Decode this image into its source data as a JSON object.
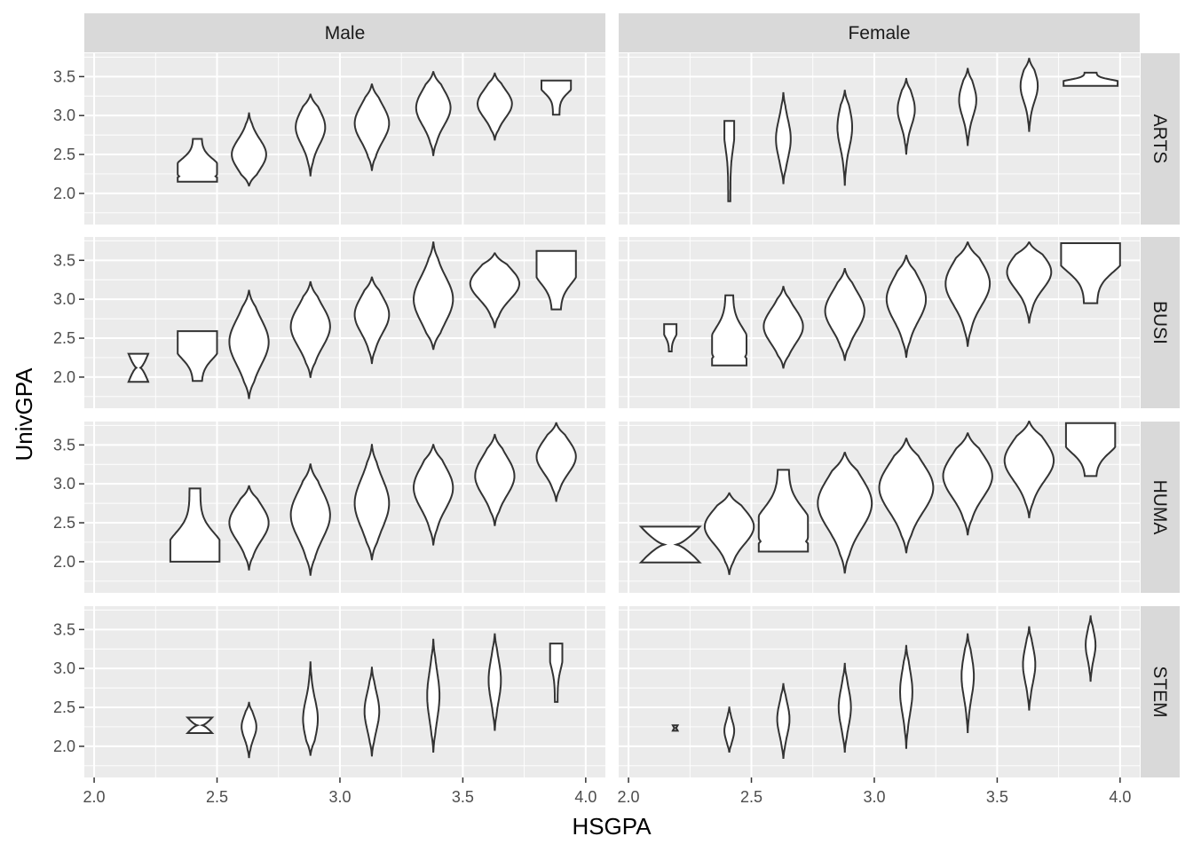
{
  "chart_data": {
    "type": "violin",
    "xlabel": "HSGPA",
    "ylabel": "UnivGPA",
    "xlim": [
      1.96,
      4.08
    ],
    "ylim": [
      1.6,
      3.8
    ],
    "x_ticks": [
      "2.0",
      "2.5",
      "3.0",
      "3.5",
      "4.0"
    ],
    "y_ticks": [
      "2.0",
      "2.5",
      "3.0",
      "3.5"
    ],
    "columns": [
      "Male",
      "Female"
    ],
    "rows": [
      "ARTS",
      "BUSI",
      "HUMA",
      "STEM"
    ],
    "grid": true,
    "violin_fill": "#FFFFFF",
    "panel_background": "#EBEBEB",
    "strip_background": "#D9D9D9",
    "panels": [
      {
        "column": "Male",
        "row": "ARTS",
        "violins": [
          {
            "x": 2.42,
            "ymin": 2.15,
            "ymax": 2.7,
            "peak": 2.38,
            "hw": 0.08,
            "shape": "bottom-heavy"
          },
          {
            "x": 2.63,
            "ymin": 2.1,
            "ymax": 3.03,
            "peak": 2.5,
            "hw": 0.07,
            "shape": "normal"
          },
          {
            "x": 2.88,
            "ymin": 2.23,
            "ymax": 3.27,
            "peak": 2.85,
            "hw": 0.06,
            "shape": "normal"
          },
          {
            "x": 3.13,
            "ymin": 2.3,
            "ymax": 3.4,
            "peak": 2.9,
            "hw": 0.07,
            "shape": "normal"
          },
          {
            "x": 3.38,
            "ymin": 2.49,
            "ymax": 3.56,
            "peak": 3.1,
            "hw": 0.07,
            "shape": "normal"
          },
          {
            "x": 3.63,
            "ymin": 2.69,
            "ymax": 3.54,
            "peak": 3.15,
            "hw": 0.07,
            "shape": "normal"
          },
          {
            "x": 3.88,
            "ymin": 3.01,
            "ymax": 3.45,
            "peak": 3.4,
            "hw": 0.06,
            "shape": "top-heavy"
          }
        ]
      },
      {
        "column": "Female",
        "row": "ARTS",
        "violins": [
          {
            "x": 2.41,
            "ymin": 1.9,
            "ymax": 2.93,
            "peak": 2.85,
            "hw": 0.02,
            "shape": "top-heavy"
          },
          {
            "x": 2.63,
            "ymin": 2.13,
            "ymax": 3.3,
            "peak": 2.7,
            "hw": 0.03,
            "shape": "normal"
          },
          {
            "x": 2.88,
            "ymin": 2.11,
            "ymax": 3.32,
            "peak": 2.85,
            "hw": 0.03,
            "shape": "normal"
          },
          {
            "x": 3.13,
            "ymin": 2.51,
            "ymax": 3.47,
            "peak": 3.08,
            "hw": 0.035,
            "shape": "normal"
          },
          {
            "x": 3.38,
            "ymin": 2.61,
            "ymax": 3.6,
            "peak": 3.2,
            "hw": 0.035,
            "shape": "normal"
          },
          {
            "x": 3.63,
            "ymin": 2.79,
            "ymax": 3.73,
            "peak": 3.38,
            "hw": 0.035,
            "shape": "normal"
          },
          {
            "x": 3.88,
            "ymin": 3.38,
            "ymax": 3.55,
            "peak": 3.42,
            "hw": 0.11,
            "shape": "bottom-heavy"
          }
        ]
      },
      {
        "column": "Male",
        "row": "BUSI",
        "violins": [
          {
            "x": 2.18,
            "ymin": 1.94,
            "ymax": 2.3,
            "peak": 2.12,
            "hw": 0.04,
            "shape": "hourglass"
          },
          {
            "x": 2.42,
            "ymin": 1.95,
            "ymax": 2.59,
            "peak": 2.3,
            "hw": 0.08,
            "shape": "top-heavy"
          },
          {
            "x": 2.63,
            "ymin": 1.73,
            "ymax": 3.11,
            "peak": 2.45,
            "hw": 0.08,
            "shape": "normal"
          },
          {
            "x": 2.88,
            "ymin": 2.0,
            "ymax": 3.22,
            "peak": 2.65,
            "hw": 0.08,
            "shape": "normal"
          },
          {
            "x": 3.13,
            "ymin": 2.18,
            "ymax": 3.28,
            "peak": 2.8,
            "hw": 0.07,
            "shape": "normal"
          },
          {
            "x": 3.38,
            "ymin": 2.36,
            "ymax": 3.73,
            "peak": 3.0,
            "hw": 0.08,
            "shape": "normal"
          },
          {
            "x": 3.63,
            "ymin": 2.64,
            "ymax": 3.59,
            "peak": 3.2,
            "hw": 0.1,
            "shape": "normal"
          },
          {
            "x": 3.88,
            "ymin": 2.87,
            "ymax": 3.62,
            "peak": 3.3,
            "hw": 0.08,
            "shape": "top-heavy"
          }
        ]
      },
      {
        "column": "Female",
        "row": "BUSI",
        "violins": [
          {
            "x": 2.17,
            "ymin": 2.33,
            "ymax": 2.68,
            "peak": 2.6,
            "hw": 0.025,
            "shape": "top-heavy"
          },
          {
            "x": 2.41,
            "ymin": 2.15,
            "ymax": 3.05,
            "peak": 2.5,
            "hw": 0.07,
            "shape": "bottom-heavy"
          },
          {
            "x": 2.63,
            "ymin": 2.12,
            "ymax": 3.16,
            "peak": 2.65,
            "hw": 0.08,
            "shape": "normal"
          },
          {
            "x": 2.88,
            "ymin": 2.22,
            "ymax": 3.39,
            "peak": 2.85,
            "hw": 0.08,
            "shape": "normal"
          },
          {
            "x": 3.13,
            "ymin": 2.26,
            "ymax": 3.56,
            "peak": 3.0,
            "hw": 0.08,
            "shape": "normal"
          },
          {
            "x": 3.38,
            "ymin": 2.4,
            "ymax": 3.73,
            "peak": 3.2,
            "hw": 0.09,
            "shape": "normal"
          },
          {
            "x": 3.63,
            "ymin": 2.7,
            "ymax": 3.73,
            "peak": 3.35,
            "hw": 0.09,
            "shape": "normal"
          },
          {
            "x": 3.88,
            "ymin": 2.95,
            "ymax": 3.72,
            "peak": 3.55,
            "hw": 0.12,
            "shape": "top-heavy"
          }
        ]
      },
      {
        "column": "Male",
        "row": "HUMA",
        "violins": [
          {
            "x": 2.41,
            "ymin": 2.0,
            "ymax": 2.94,
            "peak": 2.15,
            "hw": 0.1,
            "shape": "bottom-heavy"
          },
          {
            "x": 2.63,
            "ymin": 1.9,
            "ymax": 2.97,
            "peak": 2.5,
            "hw": 0.08,
            "shape": "normal"
          },
          {
            "x": 2.88,
            "ymin": 1.83,
            "ymax": 3.25,
            "peak": 2.6,
            "hw": 0.08,
            "shape": "normal"
          },
          {
            "x": 3.13,
            "ymin": 2.03,
            "ymax": 3.5,
            "peak": 2.75,
            "hw": 0.07,
            "shape": "normal"
          },
          {
            "x": 3.38,
            "ymin": 2.22,
            "ymax": 3.5,
            "peak": 2.95,
            "hw": 0.08,
            "shape": "normal"
          },
          {
            "x": 3.63,
            "ymin": 2.47,
            "ymax": 3.63,
            "peak": 3.1,
            "hw": 0.08,
            "shape": "normal"
          },
          {
            "x": 3.88,
            "ymin": 2.78,
            "ymax": 3.78,
            "peak": 3.35,
            "hw": 0.08,
            "shape": "normal"
          }
        ]
      },
      {
        "column": "Female",
        "row": "HUMA",
        "violins": [
          {
            "x": 2.17,
            "ymin": 1.99,
            "ymax": 2.45,
            "peak": 2.3,
            "hw": 0.12,
            "shape": "hourglass"
          },
          {
            "x": 2.41,
            "ymin": 1.84,
            "ymax": 2.88,
            "peak": 2.45,
            "hw": 0.1,
            "shape": "normal"
          },
          {
            "x": 2.63,
            "ymin": 2.13,
            "ymax": 3.18,
            "peak": 2.55,
            "hw": 0.1,
            "shape": "bottom-heavy"
          },
          {
            "x": 2.88,
            "ymin": 1.86,
            "ymax": 3.4,
            "peak": 2.75,
            "hw": 0.11,
            "shape": "normal"
          },
          {
            "x": 3.13,
            "ymin": 2.12,
            "ymax": 3.58,
            "peak": 2.95,
            "hw": 0.11,
            "shape": "normal"
          },
          {
            "x": 3.38,
            "ymin": 2.35,
            "ymax": 3.65,
            "peak": 3.1,
            "hw": 0.1,
            "shape": "normal"
          },
          {
            "x": 3.63,
            "ymin": 2.57,
            "ymax": 3.8,
            "peak": 3.3,
            "hw": 0.1,
            "shape": "normal"
          },
          {
            "x": 3.88,
            "ymin": 3.1,
            "ymax": 3.78,
            "peak": 3.55,
            "hw": 0.1,
            "shape": "top-heavy"
          }
        ]
      },
      {
        "column": "Male",
        "row": "STEM",
        "violins": [
          {
            "x": 2.43,
            "ymin": 2.17,
            "ymax": 2.37,
            "peak": 2.2,
            "hw": 0.05,
            "shape": "hourglass"
          },
          {
            "x": 2.63,
            "ymin": 1.85,
            "ymax": 2.56,
            "peak": 2.25,
            "hw": 0.03,
            "shape": "normal"
          },
          {
            "x": 2.88,
            "ymin": 1.89,
            "ymax": 3.08,
            "peak": 2.35,
            "hw": 0.03,
            "shape": "normal"
          },
          {
            "x": 3.13,
            "ymin": 1.88,
            "ymax": 3.01,
            "peak": 2.45,
            "hw": 0.03,
            "shape": "normal"
          },
          {
            "x": 3.38,
            "ymin": 1.93,
            "ymax": 3.37,
            "peak": 2.65,
            "hw": 0.025,
            "shape": "normal"
          },
          {
            "x": 3.63,
            "ymin": 2.2,
            "ymax": 3.45,
            "peak": 2.85,
            "hw": 0.025,
            "shape": "normal"
          },
          {
            "x": 3.88,
            "ymin": 2.57,
            "ymax": 3.32,
            "peak": 3.2,
            "hw": 0.025,
            "shape": "top-heavy"
          }
        ]
      },
      {
        "column": "Female",
        "row": "STEM",
        "violins": [
          {
            "x": 2.19,
            "ymin": 2.2,
            "ymax": 2.27,
            "peak": 2.23,
            "hw": 0.01,
            "shape": "hourglass"
          },
          {
            "x": 2.41,
            "ymin": 1.92,
            "ymax": 2.51,
            "peak": 2.2,
            "hw": 0.02,
            "shape": "normal"
          },
          {
            "x": 2.63,
            "ymin": 1.84,
            "ymax": 2.81,
            "peak": 2.35,
            "hw": 0.025,
            "shape": "normal"
          },
          {
            "x": 2.88,
            "ymin": 1.93,
            "ymax": 3.06,
            "peak": 2.5,
            "hw": 0.025,
            "shape": "normal"
          },
          {
            "x": 3.13,
            "ymin": 1.98,
            "ymax": 3.29,
            "peak": 2.7,
            "hw": 0.025,
            "shape": "normal"
          },
          {
            "x": 3.38,
            "ymin": 2.17,
            "ymax": 3.44,
            "peak": 2.9,
            "hw": 0.025,
            "shape": "normal"
          },
          {
            "x": 3.63,
            "ymin": 2.46,
            "ymax": 3.54,
            "peak": 3.05,
            "hw": 0.025,
            "shape": "normal"
          },
          {
            "x": 3.88,
            "ymin": 2.83,
            "ymax": 3.67,
            "peak": 3.3,
            "hw": 0.02,
            "shape": "normal"
          }
        ]
      }
    ]
  }
}
